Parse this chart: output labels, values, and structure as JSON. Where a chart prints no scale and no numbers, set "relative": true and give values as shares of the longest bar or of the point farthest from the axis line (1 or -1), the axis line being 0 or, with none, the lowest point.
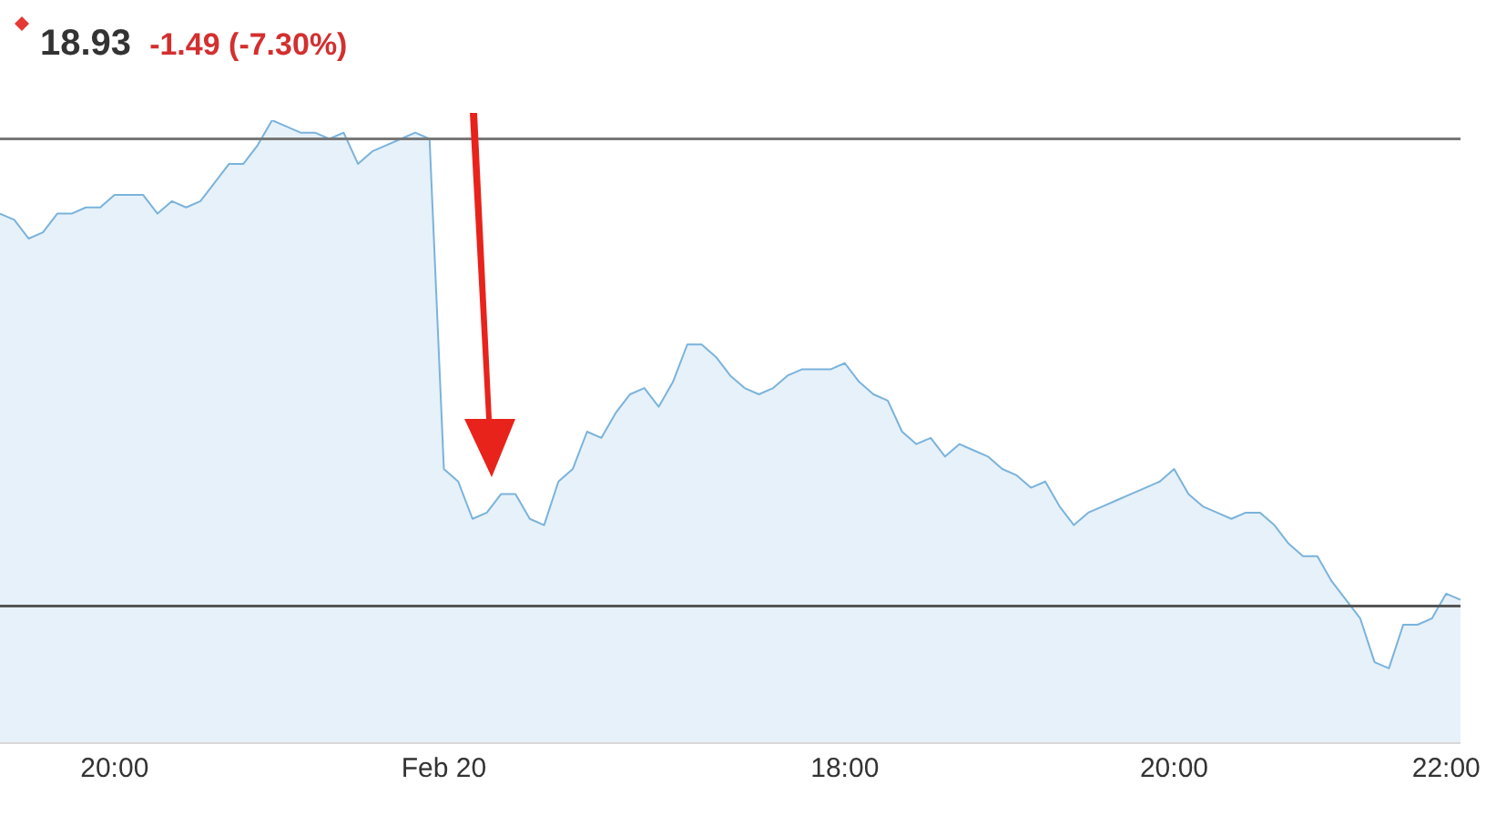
{
  "chart_data": {
    "type": "area",
    "title": "18.93 -1.49 (-7.30%)",
    "relative": true,
    "categories": [
      null,
      null,
      null,
      null,
      null,
      null,
      null,
      null,
      "20:00",
      null,
      null,
      null,
      null,
      null,
      null,
      null,
      null,
      null,
      null,
      null,
      null,
      null,
      null,
      null,
      null,
      null,
      null,
      null,
      null,
      null,
      null,
      "Feb 20",
      null,
      null,
      null,
      null,
      null,
      null,
      null,
      null,
      null,
      null,
      null,
      null,
      null,
      null,
      null,
      null,
      null,
      null,
      null,
      null,
      null,
      null,
      null,
      null,
      null,
      null,
      null,
      "18:00",
      null,
      null,
      null,
      null,
      null,
      null,
      null,
      null,
      null,
      null,
      null,
      null,
      null,
      null,
      null,
      null,
      null,
      null,
      null,
      null,
      null,
      null,
      "20:00",
      null,
      null,
      null,
      null,
      null,
      null,
      null,
      null,
      null,
      null,
      null,
      null,
      null,
      null,
      null,
      null,
      null,
      null,
      "22:00",
      null
    ],
    "series": [
      {
        "color": "#7ab3dc",
        "values": [
          0.85,
          0.84,
          0.81,
          0.82,
          0.85,
          0.85,
          0.86,
          0.86,
          0.88,
          0.88,
          0.88,
          0.85,
          0.87,
          0.86,
          0.87,
          0.9,
          0.93,
          0.93,
          0.96,
          1,
          0.99,
          0.98,
          0.98,
          0.97,
          0.98,
          0.93,
          0.95,
          0.96,
          0.97,
          0.98,
          0.97,
          0.44,
          0.42,
          0.36,
          0.37,
          0.4,
          0.4,
          0.36,
          0.35,
          0.42,
          0.44,
          0.5,
          0.49,
          0.53,
          0.56,
          0.57,
          0.54,
          0.58,
          0.64,
          0.64,
          0.62,
          0.59,
          0.57,
          0.56,
          0.57,
          0.59,
          0.6,
          0.6,
          0.6,
          0.61,
          0.58,
          0.56,
          0.55,
          0.5,
          0.48,
          0.49,
          0.46,
          0.48,
          0.47,
          0.46,
          0.44,
          0.43,
          0.41,
          0.42,
          0.38,
          0.35,
          0.37,
          0.38,
          0.39,
          0.4,
          0.41,
          0.42,
          0.44,
          0.4,
          0.38,
          0.37,
          0.36,
          0.37,
          0.37,
          0.35,
          0.32,
          0.3,
          0.3,
          0.26,
          0.23,
          0.2,
          0.13,
          0.12,
          0.19,
          0.19,
          0.2,
          0.24,
          0.23
        ]
      }
    ],
    "ref_lines": [
      {
        "axis": "y",
        "value": 0.97,
        "color": "#777777"
      },
      {
        "axis": "y",
        "value": 0.22,
        "color": "#555555"
      }
    ],
    "grid": false,
    "legend": false
  }
}
